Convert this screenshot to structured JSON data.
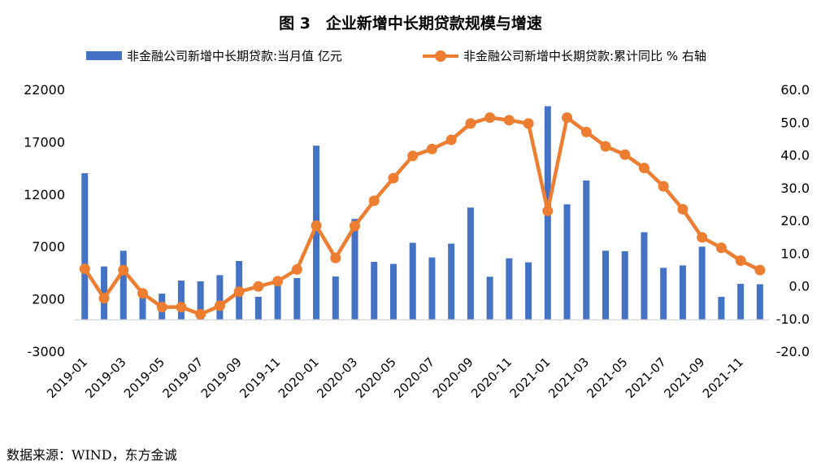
{
  "chart_data": {
    "type": "bar+line",
    "title": "图 3　企业新增中长期贷款规模与增速",
    "categories": [
      "2019-01",
      "2019-02",
      "2019-03",
      "2019-04",
      "2019-05",
      "2019-06",
      "2019-07",
      "2019-08",
      "2019-09",
      "2019-10",
      "2019-11",
      "2019-12",
      "2020-01",
      "2020-02",
      "2020-03",
      "2020-04",
      "2020-05",
      "2020-06",
      "2020-07",
      "2020-08",
      "2020-09",
      "2020-10",
      "2020-11",
      "2020-12",
      "2021-01",
      "2021-02",
      "2021-03",
      "2021-04",
      "2021-05",
      "2021-06",
      "2021-07",
      "2021-08",
      "2021-09",
      "2021-10",
      "2021-11",
      "2021-12"
    ],
    "tick_labels": [
      "2019-01",
      "2019-03",
      "2019-05",
      "2019-07",
      "2019-09",
      "2019-11",
      "2020-01",
      "2020-03",
      "2020-05",
      "2020-07",
      "2020-09",
      "2020-11",
      "2021-01",
      "2021-03",
      "2021-05",
      "2021-07",
      "2021-09",
      "2021-11"
    ],
    "series": [
      {
        "name": "非金融公司新增中长期贷款:当月值 亿元",
        "type": "bar",
        "axis": "left",
        "color": "#4472C4",
        "values": [
          14000,
          5100,
          6600,
          2400,
          2500,
          3750,
          3680,
          4270,
          5620,
          2200,
          3800,
          3990,
          16630,
          4140,
          9640,
          5540,
          5340,
          7360,
          5960,
          7280,
          10720,
          4120,
          5880,
          5490,
          20400,
          11030,
          13310,
          6600,
          6550,
          8370,
          4970,
          5200,
          6990,
          2200,
          3440,
          3400
        ]
      },
      {
        "name": "非金融公司新增中长期贷款:累计同比 % 右轴",
        "type": "line",
        "axis": "right",
        "color": "#ED7D31",
        "values": [
          5.2,
          -3.8,
          4.8,
          -2.3,
          -6.5,
          -6.5,
          -8.7,
          -6.1,
          -1.8,
          -0.2,
          1.4,
          5.0,
          18.4,
          8.5,
          18.3,
          26.0,
          32.9,
          39.7,
          41.8,
          44.6,
          49.6,
          51.4,
          50.6,
          49.6,
          22.9,
          51.4,
          47.0,
          42.6,
          40.1,
          36.0,
          30.4,
          23.4,
          14.8,
          11.6,
          7.7,
          4.8
        ]
      }
    ],
    "y_left": {
      "range": [
        -3000,
        22000
      ],
      "ticks": [
        "22000",
        "17000",
        "12000",
        "7000",
        "2000",
        "-3000"
      ],
      "tick_values": [
        22000,
        17000,
        12000,
        7000,
        2000,
        -3000
      ]
    },
    "y_right": {
      "range": [
        -20,
        60
      ],
      "ticks": [
        "60.0",
        "50.0",
        "40.0",
        "30.0",
        "20.0",
        "10.0",
        "0.0",
        "-10.0",
        "-20.0"
      ],
      "tick_values": [
        60,
        50,
        40,
        30,
        20,
        10,
        0,
        -10,
        -20
      ]
    },
    "grid": false,
    "legend_position": "top"
  },
  "source": "数据来源：WIND，东方金诚"
}
